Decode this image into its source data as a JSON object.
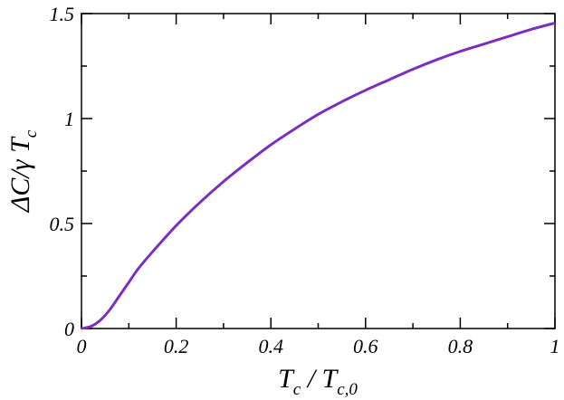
{
  "chart_data": {
    "type": "line",
    "title": "",
    "xlabel": {
      "main": "T",
      "sub": "c",
      "sep": " / ",
      "main2": "T",
      "sub2": "c,0"
    },
    "ylabel": {
      "main": "ΔC/γ T",
      "sub": "c"
    },
    "xlim": [
      0,
      1
    ],
    "ylim": [
      0,
      1.5
    ],
    "xticks": [
      0,
      0.2,
      0.4,
      0.6,
      0.8,
      1
    ],
    "xtick_labels": [
      "0",
      "0.2",
      "0.4",
      "0.6",
      "0.8",
      "1"
    ],
    "yticks": [
      0,
      0.5,
      1,
      1.5
    ],
    "ytick_labels": [
      "0",
      "0.5",
      "1",
      "1.5"
    ],
    "grid": false,
    "legend": "none",
    "series": [
      {
        "color": "#7B2FBE",
        "x": [
          0,
          0.02,
          0.04,
          0.06,
          0.08,
          0.1,
          0.12,
          0.15,
          0.2,
          0.25,
          0.3,
          0.35,
          0.4,
          0.45,
          0.5,
          0.55,
          0.6,
          0.65,
          0.7,
          0.75,
          0.8,
          0.85,
          0.9,
          0.95,
          1.0
        ],
        "y": [
          0,
          0.01,
          0.04,
          0.09,
          0.155,
          0.22,
          0.285,
          0.365,
          0.49,
          0.6,
          0.7,
          0.79,
          0.875,
          0.95,
          1.02,
          1.08,
          1.135,
          1.185,
          1.235,
          1.28,
          1.32,
          1.355,
          1.39,
          1.425,
          1.455
        ]
      }
    ]
  }
}
